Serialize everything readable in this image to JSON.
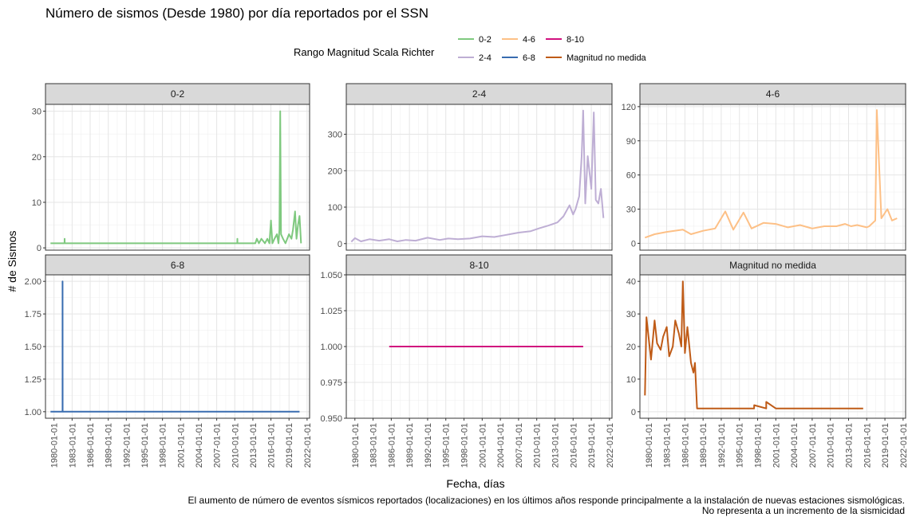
{
  "header": {
    "title": "Número de sismos (Desde 1980) por día reportados por el SSN"
  },
  "legend": {
    "title": "Rango Magnitud Scala Richter",
    "entries": [
      {
        "label": "0-2",
        "color": "#7fc97f"
      },
      {
        "label": "2-4",
        "color": "#beaed4"
      },
      {
        "label": "4-6",
        "color": "#fdc086"
      },
      {
        "label": "6-8",
        "color": "#386cb0"
      },
      {
        "label": "8-10",
        "color": "#d1117e"
      },
      {
        "label": "Magnitud no medida",
        "color": "#bf5b17"
      }
    ]
  },
  "caption": {
    "line1": "El aumento de número de eventos  sísmicos reportados (localizaciones) en los últimos años responde principalmente a la instalación de nuevas estaciones sismológicas.",
    "line2": "No representa a un incremento de la sismicidad"
  },
  "chart_data": {
    "type": "line",
    "xlabel": "Fecha, días",
    "ylabel": "# de Sismos",
    "x_tick_labels": [
      "1980-01-01",
      "1983-01-01",
      "1986-01-01",
      "1989-01-01",
      "1992-01-01",
      "1995-01-01",
      "1998-01-01",
      "2001-01-01",
      "2004-01-01",
      "2007-01-01",
      "2010-01-01",
      "2013-01-01",
      "2016-01-01",
      "2019-01-01",
      "2022-01-01"
    ],
    "grid": true,
    "legend_position": "top",
    "facets": [
      {
        "label": "0-2",
        "color": "#7fc97f",
        "xlim": [
          "1978-08-01",
          "2022-06-01"
        ],
        "ylim": [
          -0.5,
          31.5
        ],
        "y_ticks": [
          0,
          10,
          20,
          30
        ],
        "x": [
          "1979-06-01",
          "1981-10-01",
          "1981-10-05",
          "1981-10-10",
          "2010-06-01",
          "2010-06-05",
          "2010-06-10",
          "2013-06-01",
          "2013-09-01",
          "2014-01-01",
          "2014-06-01",
          "2015-01-01",
          "2015-06-01",
          "2015-10-01",
          "2016-01-01",
          "2016-04-01",
          "2016-08-01",
          "2017-01-01",
          "2017-04-01",
          "2017-06-01",
          "2017-07-15",
          "2017-09-01",
          "2018-01-01",
          "2018-06-01",
          "2019-01-01",
          "2019-06-01",
          "2019-09-01",
          "2020-01-01",
          "2020-04-01",
          "2020-07-01",
          "2020-10-01",
          "2021-01-01"
        ],
        "y": [
          1,
          1,
          2,
          1,
          1,
          2,
          1,
          1,
          2,
          1,
          2,
          1,
          2,
          1,
          6,
          1,
          2,
          3,
          1,
          4,
          30,
          3,
          2,
          1,
          3,
          2,
          4,
          8,
          2,
          5,
          7,
          1
        ]
      },
      {
        "label": "2-4",
        "color": "#beaed4",
        "xlim": [
          "1978-08-01",
          "2022-06-01"
        ],
        "ylim": [
          -18,
          382
        ],
        "y_ticks": [
          0,
          100,
          200,
          300
        ],
        "x": [
          "1979-06-01",
          "1980-01-01",
          "1981-01-01",
          "1982-06-01",
          "1984-01-01",
          "1985-09-01",
          "1987-01-01",
          "1988-06-01",
          "1990-01-01",
          "1992-01-01",
          "1994-01-01",
          "1995-06-01",
          "1997-01-01",
          "1999-01-01",
          "2001-01-01",
          "2003-01-01",
          "2005-01-01",
          "2007-01-01",
          "2009-01-01",
          "2010-06-01",
          "2012-01-01",
          "2013-06-01",
          "2014-06-01",
          "2015-06-01",
          "2016-01-01",
          "2016-06-01",
          "2017-01-01",
          "2017-06-01",
          "2017-09-01",
          "2018-01-01",
          "2018-06-01",
          "2019-01-01",
          "2019-06-01",
          "2019-10-01",
          "2020-03-01",
          "2020-08-01",
          "2021-01-01"
        ],
        "y": [
          5,
          15,
          6,
          12,
          8,
          12,
          6,
          10,
          8,
          16,
          10,
          14,
          12,
          14,
          20,
          18,
          24,
          30,
          34,
          42,
          50,
          58,
          75,
          105,
          80,
          95,
          130,
          240,
          365,
          110,
          240,
          150,
          360,
          120,
          110,
          150,
          70
        ]
      },
      {
        "label": "4-6",
        "color": "#fdc086",
        "xlim": [
          "1978-08-01",
          "2022-06-01"
        ],
        "ylim": [
          -6,
          122
        ],
        "y_ticks": [
          0,
          30,
          60,
          90,
          120
        ],
        "x": [
          "1979-06-01",
          "1981-01-01",
          "1983-01-01",
          "1985-09-01",
          "1987-01-01",
          "1989-01-01",
          "1991-01-01",
          "1992-09-01",
          "1994-01-01",
          "1995-09-01",
          "1997-01-01",
          "1999-01-01",
          "2001-01-01",
          "2003-01-01",
          "2005-01-01",
          "2007-01-01",
          "2009-01-01",
          "2011-01-01",
          "2012-06-01",
          "2013-06-01",
          "2014-06-01",
          "2016-01-01",
          "2016-06-01",
          "2017-06-01",
          "2017-09-01",
          "2018-06-01",
          "2019-06-01",
          "2020-03-01",
          "2021-01-01"
        ],
        "y": [
          5,
          8,
          10,
          12,
          8,
          11,
          13,
          28,
          12,
          27,
          13,
          18,
          17,
          14,
          16,
          13,
          15,
          15,
          17,
          15,
          16,
          14,
          15,
          20,
          117,
          22,
          30,
          20,
          22
        ]
      },
      {
        "label": "6-8",
        "color": "#386cb0",
        "xlim": [
          "1978-08-01",
          "2022-06-01"
        ],
        "ylim": [
          0.95,
          2.05
        ],
        "y_ticks": [
          1.0,
          1.25,
          1.5,
          1.75,
          2.0
        ],
        "y_tick_labels": [
          "1.00",
          "1.25",
          "1.50",
          "1.75",
          "2.00"
        ],
        "x": [
          "1979-06-01",
          "1981-06-01",
          "1981-06-03",
          "1981-06-05",
          "2020-10-01"
        ],
        "y": [
          1,
          1,
          2,
          1,
          1
        ]
      },
      {
        "label": "8-10",
        "color": "#d1117e",
        "xlim": [
          "1978-08-01",
          "2022-06-01"
        ],
        "ylim": [
          0.95,
          1.05
        ],
        "y_ticks": [
          0.95,
          0.975,
          1.0,
          1.025,
          1.05
        ],
        "y_tick_labels": [
          "0.950",
          "0.975",
          "1.000",
          "1.025",
          "1.050"
        ],
        "x": [
          "1985-09-01",
          "2017-09-01"
        ],
        "y": [
          1,
          1
        ]
      },
      {
        "label": "Magnitud no medida",
        "color": "#bf5b17",
        "xlim": [
          "1978-08-01",
          "2022-06-01"
        ],
        "ylim": [
          -2,
          42
        ],
        "y_ticks": [
          0,
          10,
          20,
          30,
          40
        ],
        "x": [
          "1979-06-01",
          "1979-09-01",
          "1980-01-01",
          "1980-06-01",
          "1981-01-01",
          "1981-06-01",
          "1982-01-01",
          "1982-06-01",
          "1983-01-01",
          "1983-06-01",
          "1984-01-01",
          "1984-06-01",
          "1985-01-01",
          "1985-06-01",
          "1985-09-01",
          "1986-01-01",
          "1986-06-01",
          "1987-01-01",
          "1987-06-01",
          "1987-09-01",
          "1988-01-01",
          "1997-06-01",
          "1997-06-05",
          "1999-06-01",
          "1999-06-05",
          "2001-01-01",
          "2011-06-01",
          "2015-06-01"
        ],
        "y": [
          5,
          29,
          23,
          16,
          28,
          21,
          19,
          23,
          26,
          17,
          20,
          28,
          24,
          20,
          40,
          18,
          26,
          15,
          12,
          15,
          1,
          1,
          2,
          1,
          3,
          1,
          1,
          1
        ]
      }
    ]
  }
}
